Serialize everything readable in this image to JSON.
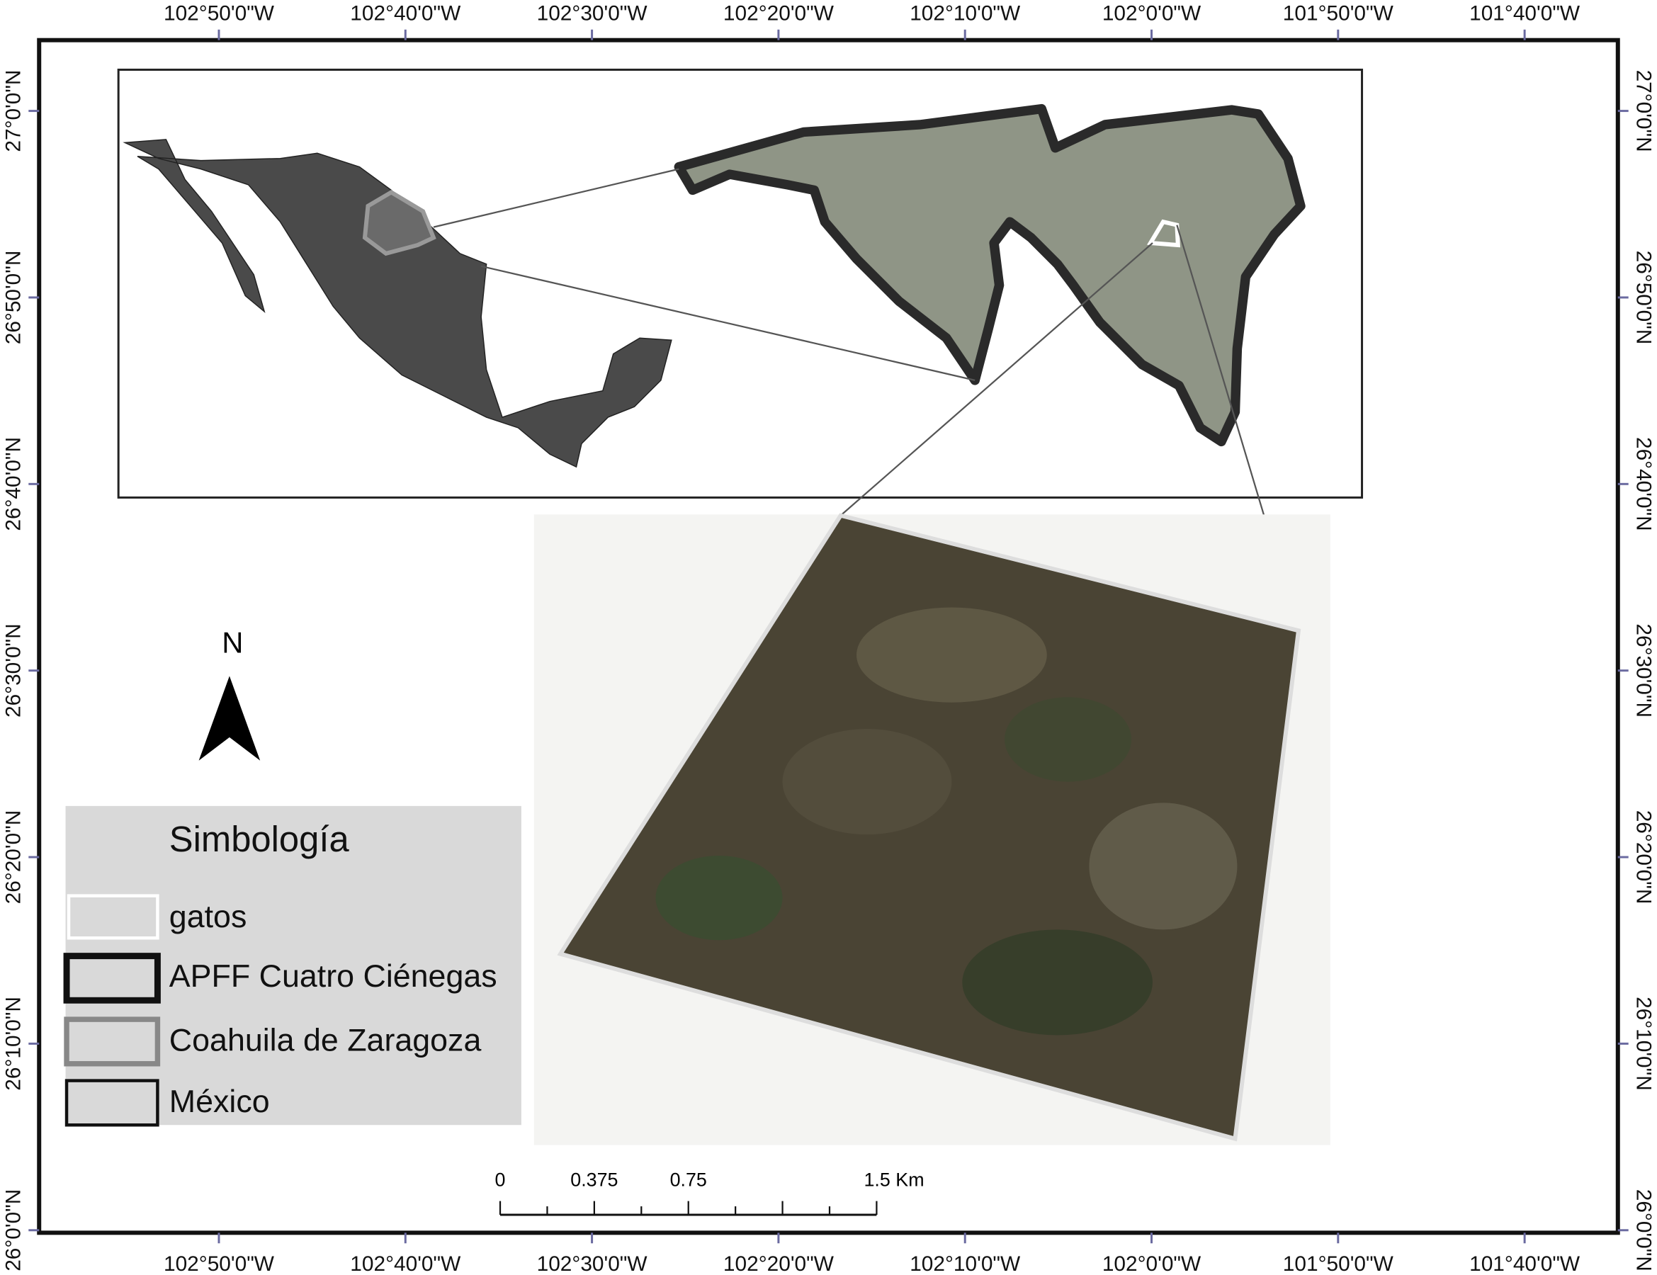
{
  "graticule": {
    "longitudes": [
      "102°50'0\"W",
      "102°40'0\"W",
      "102°30'0\"W",
      "102°20'0\"W",
      "102°10'0\"W",
      "102°0'0\"W",
      "101°50'0\"W",
      "101°40'0\"W"
    ],
    "latitudes": [
      "27°0'0\"N",
      "26°50'0\"N",
      "26°40'0\"N",
      "26°30'0\"N",
      "26°20'0\"N",
      "26°10'0\"N",
      "26°0'0\"N"
    ]
  },
  "north_arrow": "N",
  "legend": {
    "title": "Simbología",
    "items": [
      "gatos",
      "APFF Cuatro Ciénegas",
      "Coahuila de Zaragoza",
      "México"
    ]
  },
  "scale_bar": {
    "labels": [
      "0",
      "0.375",
      "0.75",
      "1.5 Km"
    ]
  }
}
